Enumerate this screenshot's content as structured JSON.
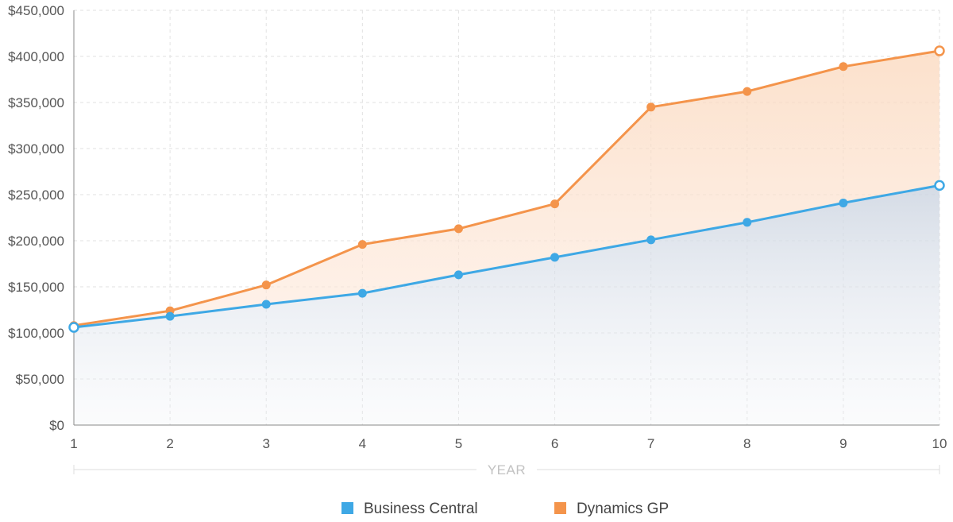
{
  "chart_data": {
    "type": "area",
    "x": [
      1,
      2,
      3,
      4,
      5,
      6,
      7,
      8,
      9,
      10
    ],
    "xlabel": "YEAR",
    "ylabel": "",
    "title": "",
    "ylim": [
      0,
      450000
    ],
    "yticks": [
      0,
      50000,
      100000,
      150000,
      200000,
      250000,
      300000,
      350000,
      400000,
      450000
    ],
    "ytick_labels": [
      "$0",
      "$50,000",
      "$100,000",
      "$150,000",
      "$200,000",
      "$250,000",
      "$300,000",
      "$350,000",
      "$400,000",
      "$450,000"
    ],
    "xtick_labels": [
      "1",
      "2",
      "3",
      "4",
      "5",
      "6",
      "7",
      "8",
      "9",
      "10"
    ],
    "grid": true,
    "legend_position": "bottom-center",
    "series": [
      {
        "name": "Business Central",
        "color": "#3ea8e5",
        "values": [
          106000,
          118000,
          131000,
          143000,
          163000,
          182000,
          201000,
          220000,
          241000,
          260000
        ]
      },
      {
        "name": "Dynamics GP",
        "color": "#f4944b",
        "values": [
          108000,
          124000,
          152000,
          196000,
          213000,
          240000,
          345000,
          362000,
          389000,
          406000
        ]
      }
    ]
  }
}
